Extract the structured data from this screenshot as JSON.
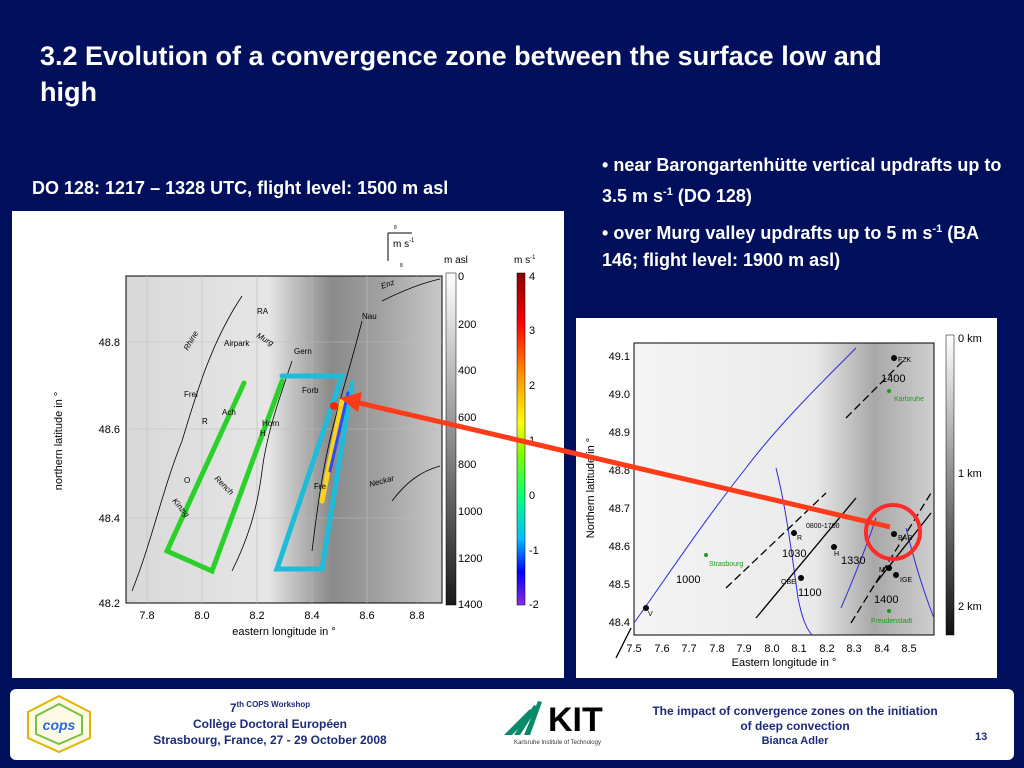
{
  "slide": {
    "title": "3.2 Evolution of a convergence zone between the surface low and high",
    "caption": "DO 128: 1217 – 1328 UTC, flight level: 1500 m asl",
    "bullet1": {
      "text": "near Barongartenhütte vertical updrafts up to 3.5 m s",
      "sup": "-1",
      "tail": " (DO 128)"
    },
    "bullet2": {
      "text": "over Murg valley updrafts up to 5 m s",
      "sup": "-1",
      "tail": " (BA 146; flight level: 1900 m asl)"
    },
    "bullet_marker": "•"
  },
  "left_map": {
    "xlabel": "eastern longitude in °",
    "ylabel": "northern latitude in °",
    "xticks": [
      "7.8",
      "8.0",
      "8.2",
      "8.4",
      "8.6",
      "8.8"
    ],
    "yticks": [
      "48.8",
      "48.6",
      "48.4",
      "48.2"
    ],
    "wind_legend": "m s",
    "wind_legend_sup": "-1",
    "wind_legend_marks": [
      "8",
      "8"
    ],
    "height_bar_title": "m asl",
    "height_bar_ticks": [
      "0",
      "200",
      "400",
      "600",
      "800",
      "1000",
      "1200",
      "1400"
    ],
    "w_bar_title": "m s",
    "w_bar_title_sup": "-1",
    "w_bar_ticks": [
      "4",
      "3",
      "2",
      "1",
      "0",
      "-1",
      "-2"
    ],
    "place_labels": [
      "RA",
      "Airpark",
      "Gern",
      "Nau",
      "Forb",
      "Frei",
      "R",
      "Ach",
      "Horn",
      "H",
      "O",
      "Fre"
    ],
    "river_labels": [
      "Rhine",
      "Murg",
      "Enz",
      "Rench",
      "Kinzig",
      "Neckar"
    ]
  },
  "right_map": {
    "xlabel": "Eastern longitude in °",
    "ylabel": "Northern latitude in °",
    "xticks": [
      "7.5",
      "7.6",
      "7.7",
      "7.8",
      "7.9",
      "8.0",
      "8.1",
      "8.2",
      "8.3",
      "8.4",
      "8.5"
    ],
    "yticks": [
      "49.1",
      "49.0",
      "48.9",
      "48.8",
      "48.7",
      "48.6",
      "48.5",
      "48.4"
    ],
    "height_bar_ticks": [
      "0 km",
      "1 km",
      "2 km"
    ],
    "place_labels": [
      "FZK",
      "Karlsruhe",
      "Strasbourg",
      "R",
      "H",
      "BAR",
      "M",
      "IGE",
      "OBE",
      "V",
      "Freudenstadt"
    ],
    "time_labels": [
      "1400",
      "1330",
      "1030",
      "1000",
      "1100",
      "1400",
      "0800-1700"
    ]
  },
  "footer": {
    "workshop_line1": "th COPS Workshop",
    "workshop_num": "7",
    "workshop_line2": "Collège Doctoral Européen",
    "workshop_line3": "Strasbourg, France, 27 - 29 October 2008",
    "logo_text": "cops",
    "kit_logo": "KIT",
    "kit_sub": "Karlsruhe Institute of Technology",
    "impact_line1": "The impact of convergence zones on the initiation",
    "impact_line2": "of deep convection",
    "author": "Bianca Adler",
    "page_number": "13"
  },
  "colors": {
    "background": "#000f5c",
    "arrow": "#ff3b1a",
    "circle": "#ff2a2a",
    "footer_text": "#1d2a78",
    "kit_green": "#0a8a6a"
  }
}
